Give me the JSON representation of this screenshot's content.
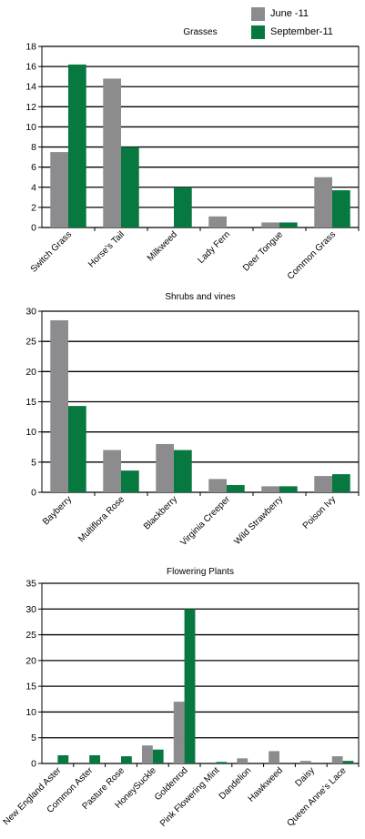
{
  "legend": {
    "series": [
      {
        "name": "June -11",
        "color": "#8c8c8e"
      },
      {
        "name": "September-11",
        "color": "#07783f"
      }
    ]
  },
  "chart_data": [
    {
      "type": "bar",
      "title": "Grasses",
      "xlabel": "",
      "ylabel": "",
      "categories": [
        "Switch Grass",
        "Horse's Tail",
        "Milkweed",
        "Lady Fern",
        "Deer Tongue",
        "Common Grass"
      ],
      "series": [
        {
          "name": "June -11",
          "values": [
            7.5,
            14.8,
            0,
            1.1,
            0.5,
            5.0
          ]
        },
        {
          "name": "September-11",
          "values": [
            16.2,
            8.0,
            4.0,
            0,
            0.5,
            3.7
          ]
        }
      ],
      "ylim": [
        0,
        18
      ],
      "yticks": [
        0,
        2,
        4,
        6,
        8,
        10,
        12,
        14,
        16,
        18
      ],
      "grid": true,
      "legend_position": "top-right"
    },
    {
      "type": "bar",
      "title": "Shrubs and vines",
      "xlabel": "",
      "ylabel": "",
      "categories": [
        "Bayberry",
        "Multiflora Rose",
        "Blackberry",
        "Virginia Creeper",
        "Wild Strawberry",
        "Poison Ivy"
      ],
      "series": [
        {
          "name": "June -11",
          "values": [
            28.5,
            7.0,
            8.0,
            2.2,
            1.0,
            2.7
          ]
        },
        {
          "name": "September-11",
          "values": [
            14.3,
            3.6,
            7.0,
            1.2,
            1.0,
            3.0
          ]
        }
      ],
      "ylim": [
        0,
        30
      ],
      "yticks": [
        0,
        5,
        10,
        15,
        20,
        25,
        30
      ],
      "grid": true
    },
    {
      "type": "bar",
      "title": "Flowering Plants",
      "xlabel": "",
      "ylabel": "",
      "categories": [
        "New England Aster",
        "Common Aster",
        "Pasture Rose",
        "HoneySuckle",
        "Goldenrod",
        "Pink Flowering Mint",
        "Dandelion",
        "Hawkweed",
        "Daisy",
        "Queen Anne's Lace"
      ],
      "series": [
        {
          "name": "June -11",
          "values": [
            0,
            0,
            0,
            3.5,
            12.0,
            0,
            1.0,
            2.4,
            0.5,
            1.4
          ]
        },
        {
          "name": "September-11",
          "values": [
            1.6,
            1.6,
            1.4,
            2.7,
            30.0,
            0.3,
            0,
            0,
            0,
            0.5
          ]
        }
      ],
      "ylim": [
        0,
        35
      ],
      "yticks": [
        0,
        5,
        10,
        15,
        20,
        25,
        30,
        35
      ],
      "grid": true
    }
  ]
}
